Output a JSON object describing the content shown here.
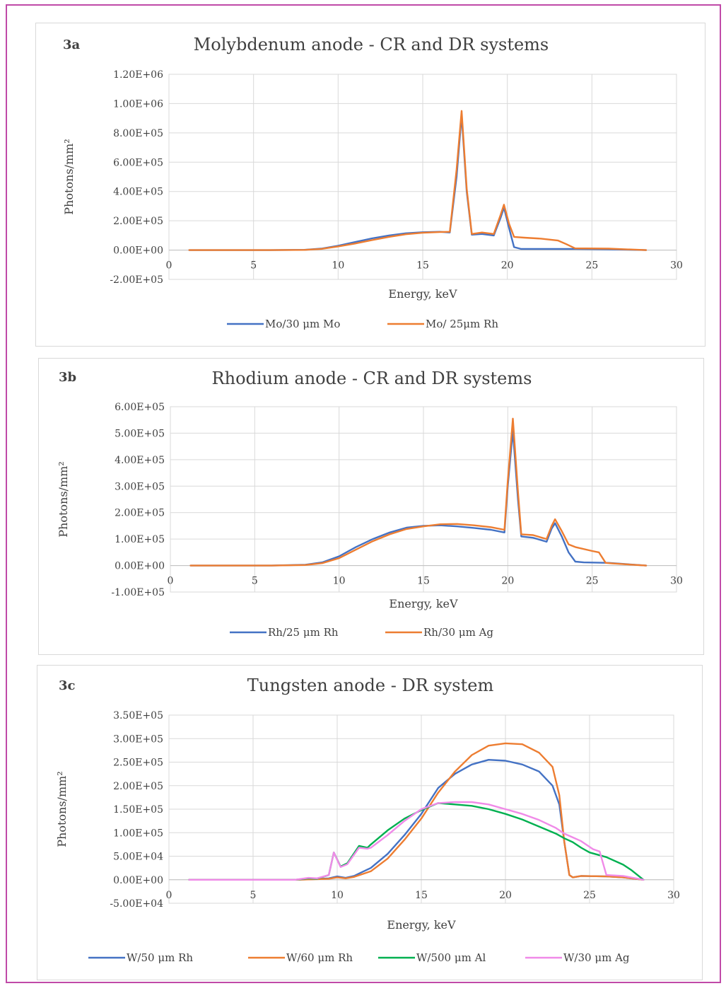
{
  "chart_data": [
    {
      "panel_label": "3a",
      "type": "line",
      "title": "Molybdenum anode - CR and DR systems",
      "xlabel": "Energy, keV",
      "ylabel": "Photons/mm²",
      "xlim": [
        0,
        30
      ],
      "ylim": [
        -200000,
        1200000
      ],
      "xticks": [
        0,
        5,
        10,
        15,
        20,
        25,
        30
      ],
      "yticks": [
        -200000,
        0,
        200000,
        400000,
        600000,
        800000,
        1000000,
        1200000
      ],
      "ytick_labels": [
        "-2.00E+05",
        "0.00E+00",
        "2.00E+05",
        "4.00E+05",
        "6.00E+05",
        "8.00E+05",
        "1.00E+06",
        "1.20E+06"
      ],
      "grid": true,
      "legend": "bottom",
      "series": [
        {
          "name": "Mo/30 μm Mo",
          "color": "#4472c4",
          "x": [
            1.2,
            6,
            8,
            9,
            10,
            11,
            12,
            13,
            14,
            15,
            16,
            16.6,
            17.0,
            17.3,
            17.6,
            17.9,
            18.5,
            19.2,
            19.6,
            19.8,
            20.1,
            20.4,
            20.8,
            22,
            24,
            26,
            28.2
          ],
          "y": [
            0,
            0,
            2000,
            10000,
            30000,
            55000,
            80000,
            100000,
            115000,
            122000,
            125000,
            120000,
            500000,
            920000,
            400000,
            105000,
            110000,
            100000,
            220000,
            290000,
            150000,
            20000,
            8000,
            8000,
            8000,
            5000,
            0
          ]
        },
        {
          "name": "Mo/ 25μm Rh",
          "color": "#ed7d31",
          "x": [
            1.2,
            6,
            8,
            9,
            10,
            11,
            12,
            13,
            14,
            15,
            16,
            16.6,
            17.0,
            17.3,
            17.6,
            17.9,
            18.5,
            19.2,
            19.6,
            19.8,
            20.1,
            20.4,
            21,
            22,
            23,
            23.5,
            24,
            26,
            28.2
          ],
          "y": [
            0,
            0,
            1500,
            8000,
            25000,
            45000,
            68000,
            90000,
            108000,
            118000,
            123000,
            125000,
            550000,
            950000,
            420000,
            110000,
            120000,
            110000,
            240000,
            310000,
            180000,
            90000,
            85000,
            78000,
            65000,
            40000,
            12000,
            10000,
            0
          ]
        }
      ]
    },
    {
      "panel_label": "3b",
      "type": "line",
      "title": "Rhodium anode - CR and DR systems",
      "xlabel": "Energy, keV",
      "ylabel": "Photons/mm²",
      "xlim": [
        0,
        30
      ],
      "ylim": [
        -100000,
        600000
      ],
      "xticks": [
        0,
        5,
        10,
        15,
        20,
        25,
        30
      ],
      "yticks": [
        -100000,
        0,
        100000,
        200000,
        300000,
        400000,
        500000,
        600000
      ],
      "ytick_labels": [
        "-1.00E+05",
        "0.00E+00",
        "1.00E+05",
        "2.00E+05",
        "3.00E+05",
        "4.00E+05",
        "5.00E+05",
        "6.00E+05"
      ],
      "grid": true,
      "legend": "bottom",
      "series": [
        {
          "name": "Rh/25 μm Rh",
          "color": "#4472c4",
          "x": [
            1.2,
            6,
            8,
            9,
            10,
            11,
            12,
            13,
            14,
            15,
            16,
            17,
            18,
            19,
            19.8,
            20.0,
            20.3,
            20.6,
            20.8,
            21.5,
            22.3,
            22.6,
            22.8,
            23.2,
            23.6,
            24.0,
            24.5,
            26,
            28.2
          ],
          "y": [
            0,
            0,
            3000,
            12000,
            35000,
            70000,
            100000,
            125000,
            143000,
            150000,
            152000,
            148000,
            142000,
            135000,
            125000,
            300000,
            510000,
            250000,
            110000,
            105000,
            90000,
            140000,
            160000,
            110000,
            50000,
            15000,
            12000,
            10000,
            0
          ]
        },
        {
          "name": "Rh/30 μm Ag",
          "color": "#ed7d31",
          "x": [
            1.2,
            6,
            8,
            9,
            10,
            11,
            12,
            13,
            14,
            15,
            16,
            17,
            18,
            19,
            19.8,
            20.0,
            20.3,
            20.6,
            20.8,
            21.5,
            22.3,
            22.6,
            22.8,
            23.2,
            23.6,
            24.0,
            25.0,
            25.4,
            25.8,
            26.2,
            28.2
          ],
          "y": [
            0,
            0,
            2000,
            9000,
            28000,
            60000,
            92000,
            118000,
            138000,
            148000,
            156000,
            157000,
            152000,
            145000,
            135000,
            320000,
            555000,
            280000,
            118000,
            115000,
            100000,
            150000,
            175000,
            130000,
            80000,
            70000,
            55000,
            50000,
            10000,
            8000,
            0
          ]
        }
      ]
    },
    {
      "panel_label": "3c",
      "type": "line",
      "title": "Tungsten anode -  DR system",
      "xlabel": "Energy, keV",
      "ylabel": "Photons/mm²",
      "xlim": [
        0,
        30
      ],
      "ylim": [
        -50000,
        350000
      ],
      "xticks": [
        0,
        5,
        10,
        15,
        20,
        25,
        30
      ],
      "yticks": [
        -50000,
        0,
        50000,
        100000,
        150000,
        200000,
        250000,
        300000,
        350000
      ],
      "ytick_labels": [
        "-5.00E+04",
        "0.00E+00",
        "5.00E+04",
        "1.00E+05",
        "1.50E+05",
        "2.00E+05",
        "2.50E+05",
        "3.00E+05",
        "3.50E+05"
      ],
      "grid": true,
      "legend": "bottom",
      "series": [
        {
          "name": "W/50 μm Rh",
          "color": "#4472c4",
          "x": [
            1.2,
            7.5,
            8.5,
            9.5,
            10,
            10.5,
            11,
            12,
            13,
            14,
            15,
            16,
            17,
            18,
            19,
            20,
            21,
            22,
            22.8,
            23.2,
            23.5,
            23.8,
            24,
            24.5,
            26,
            27,
            28.2
          ],
          "y": [
            0,
            0,
            1000,
            3000,
            7000,
            4000,
            8000,
            25000,
            55000,
            95000,
            140000,
            195000,
            225000,
            245000,
            255000,
            253000,
            245000,
            230000,
            200000,
            160000,
            80000,
            10000,
            5000,
            8000,
            7000,
            5000,
            0
          ]
        },
        {
          "name": "W/60 μm Rh",
          "color": "#ed7d31",
          "x": [
            1.2,
            7.5,
            8.5,
            9.5,
            10,
            10.5,
            11,
            12,
            13,
            14,
            15,
            16,
            17,
            18,
            19,
            20,
            21,
            22,
            22.8,
            23.2,
            23.5,
            23.8,
            24,
            24.5,
            26,
            27,
            28.2
          ],
          "y": [
            0,
            0,
            800,
            2000,
            5000,
            3000,
            6000,
            18000,
            45000,
            85000,
            130000,
            185000,
            230000,
            265000,
            285000,
            290000,
            288000,
            270000,
            240000,
            180000,
            80000,
            10000,
            5000,
            8000,
            7000,
            5000,
            0
          ]
        },
        {
          "name": "W/500 μm Al",
          "color": "#00b050",
          "x": [
            1.2,
            7.5,
            8.3,
            8.8,
            9.5,
            9.8,
            10.2,
            10.6,
            11.3,
            11.8,
            12,
            13,
            14,
            15,
            16,
            17,
            18,
            19,
            20,
            21,
            22,
            23,
            23.5,
            24,
            24.5,
            25,
            26,
            27,
            27.5,
            28.2
          ],
          "y": [
            0,
            0,
            3000,
            2000,
            10000,
            58000,
            28000,
            35000,
            72000,
            68000,
            75000,
            105000,
            130000,
            148000,
            163000,
            160000,
            157000,
            150000,
            140000,
            128000,
            113000,
            98000,
            88000,
            80000,
            68000,
            58000,
            48000,
            32000,
            20000,
            0
          ]
        },
        {
          "name": "W/30 μm Ag",
          "color": "#f08ae8",
          "x": [
            1.2,
            7.5,
            8.3,
            8.8,
            9.5,
            9.8,
            10.2,
            10.6,
            11.3,
            11.8,
            12,
            13,
            14,
            15,
            16,
            17,
            18,
            19,
            20,
            21,
            22,
            23,
            23.5,
            24,
            24.5,
            25.2,
            25.6,
            26,
            27,
            28.2
          ],
          "y": [
            0,
            0,
            4000,
            3000,
            10000,
            58000,
            27000,
            33000,
            68000,
            66000,
            68000,
            95000,
            125000,
            150000,
            163000,
            165000,
            165000,
            160000,
            150000,
            140000,
            127000,
            110000,
            98000,
            90000,
            82000,
            65000,
            60000,
            10000,
            8000,
            0
          ]
        }
      ]
    }
  ]
}
